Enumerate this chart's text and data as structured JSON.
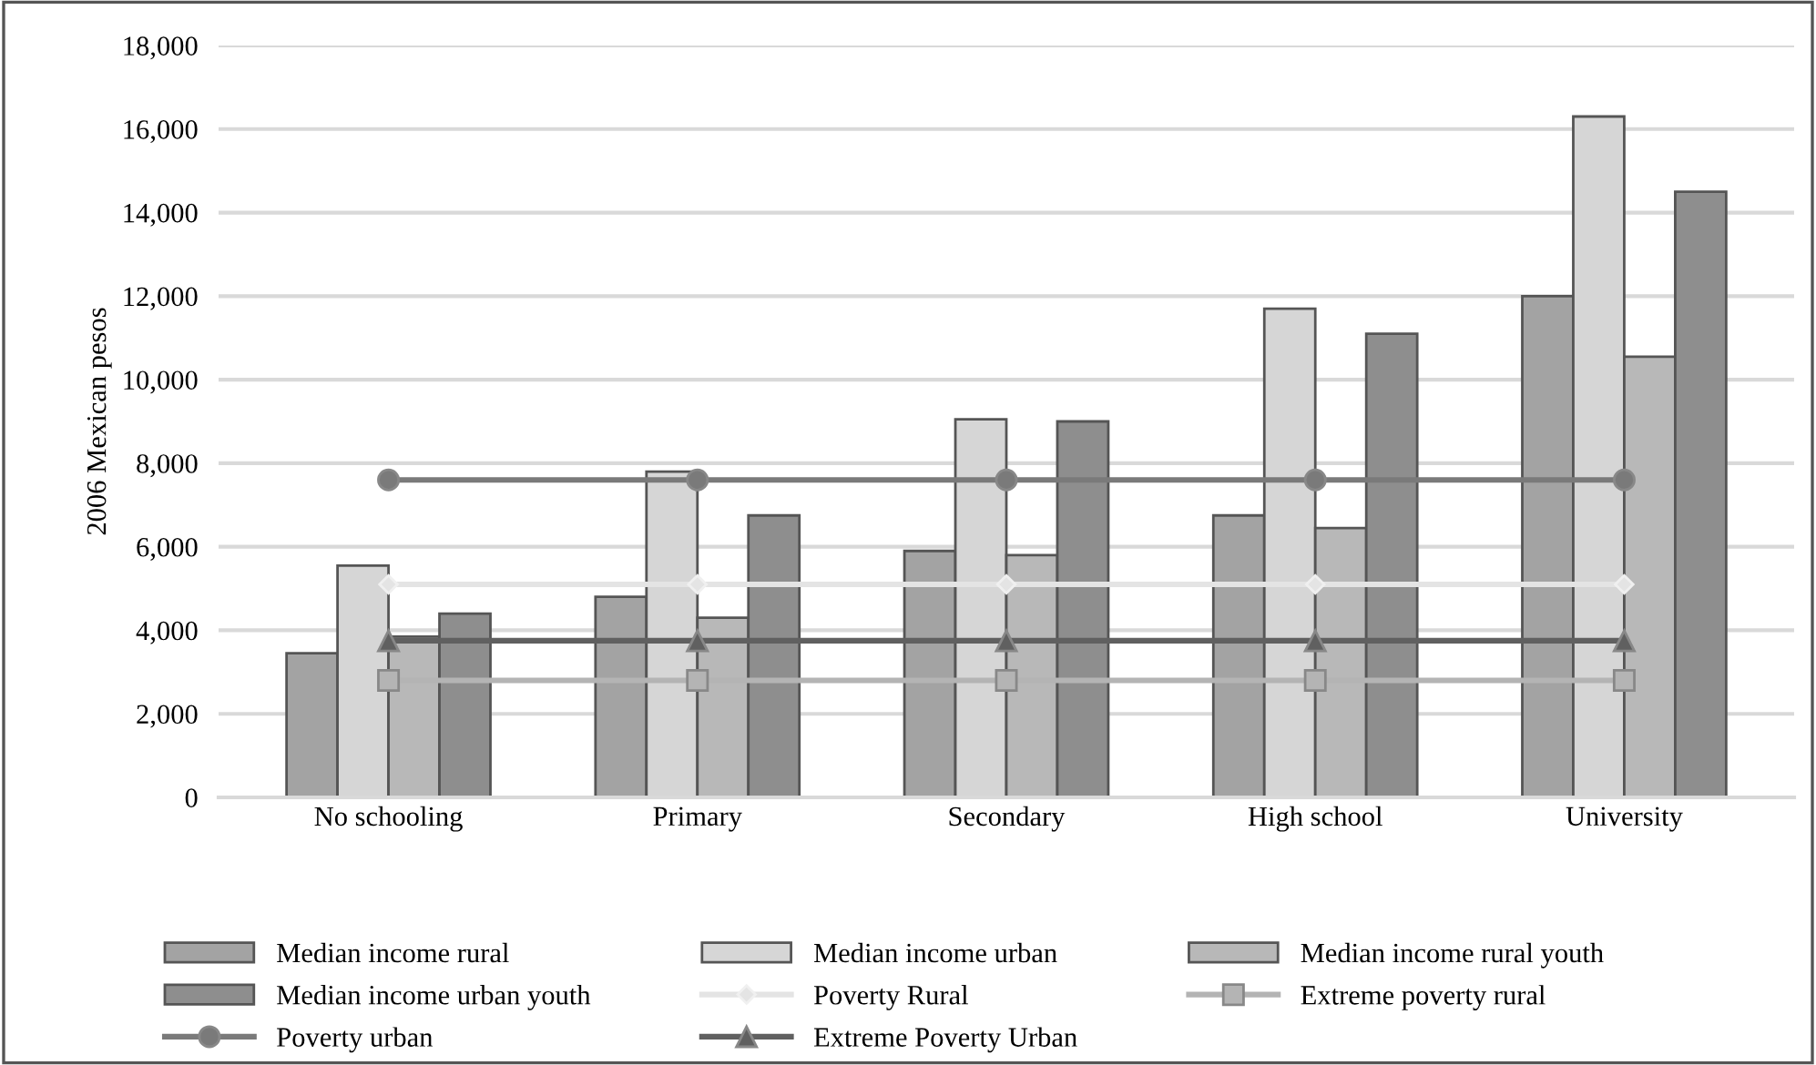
{
  "chart_data": {
    "type": "bar",
    "ylabel": "2006 Mexican pesos",
    "categories": [
      "No schooling",
      "Primary",
      "Secondary",
      "High school",
      "University"
    ],
    "series": [
      {
        "name": "Median income rural",
        "color": "#a3a3a3",
        "values": [
          3450,
          4800,
          5900,
          6750,
          12000
        ]
      },
      {
        "name": "Median income urban",
        "color": "#d6d6d6",
        "values": [
          5550,
          7800,
          9050,
          11700,
          16300
        ]
      },
      {
        "name": "Median income rural youth",
        "color": "#b8b8b8",
        "values": [
          3850,
          4300,
          5800,
          6450,
          10550
        ]
      },
      {
        "name": "Median income urban youth",
        "color": "#8e8e8e",
        "values": [
          4400,
          6750,
          9000,
          11100,
          14500
        ]
      },
      {
        "name": "Poverty Rural",
        "type": "line",
        "marker": "diamond",
        "color": "#e4e4e4",
        "values": [
          5100,
          5100,
          5100,
          5100,
          5100
        ]
      },
      {
        "name": "Extreme poverty rural",
        "type": "line",
        "marker": "square",
        "color": "#b4b4b4",
        "values": [
          2800,
          2800,
          2800,
          2800,
          2800
        ]
      },
      {
        "name": "Poverty urban",
        "type": "line",
        "marker": "circle",
        "color": "#7a7a7a",
        "values": [
          7600,
          7600,
          7600,
          7600,
          7600
        ]
      },
      {
        "name": "Extreme Poverty Urban",
        "type": "line",
        "marker": "triangle",
        "color": "#606060",
        "values": [
          3750,
          3750,
          3750,
          3750,
          3750
        ]
      }
    ],
    "ylim": [
      0,
      18000
    ],
    "yticks": [
      {
        "value": 0,
        "label": "0"
      },
      {
        "value": 2000,
        "label": "2,000"
      },
      {
        "value": 4000,
        "label": "4,000"
      },
      {
        "value": 6000,
        "label": "6,000"
      },
      {
        "value": 8000,
        "label": "8,000"
      },
      {
        "value": 10000,
        "label": "10,000"
      },
      {
        "value": 12000,
        "label": "12,000"
      },
      {
        "value": 14000,
        "label": "14,000"
      },
      {
        "value": 16000,
        "label": "16,000"
      },
      {
        "value": 18000,
        "label": "18,000"
      }
    ],
    "grid": "y",
    "legend": "bottom"
  }
}
